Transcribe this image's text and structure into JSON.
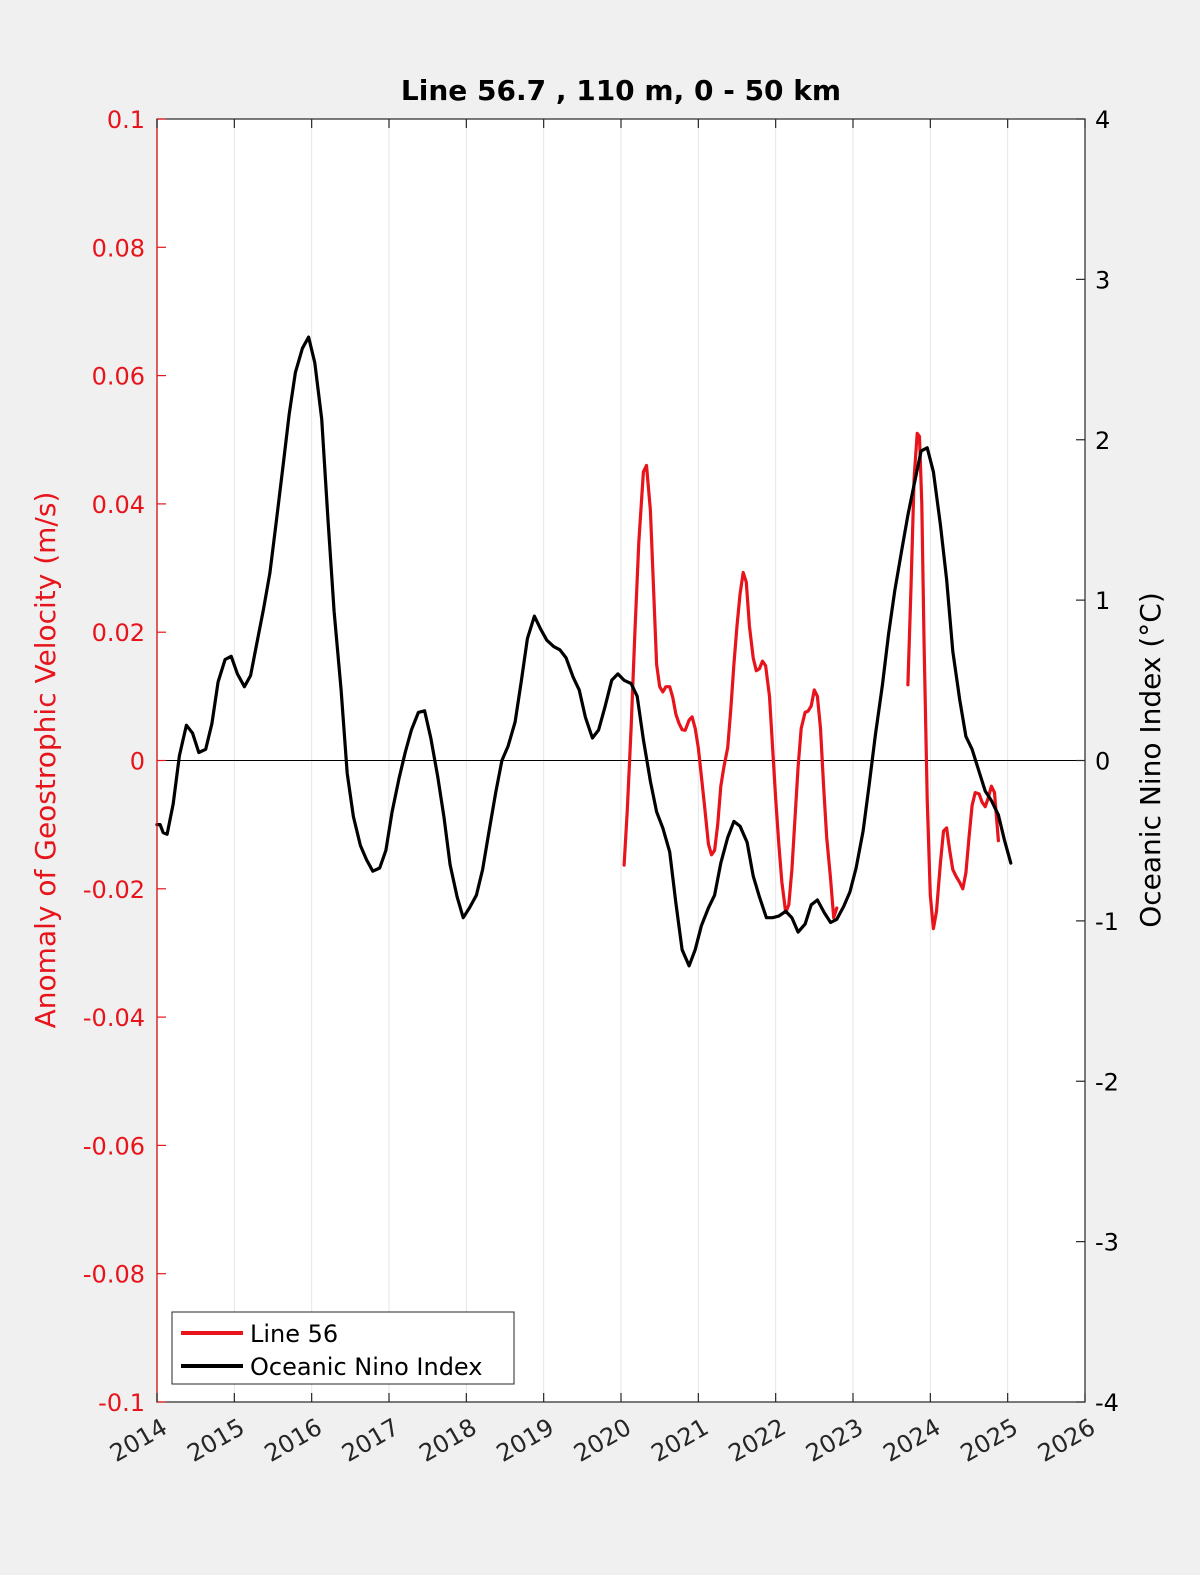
{
  "chart_data": {
    "type": "line",
    "title": "Line 56.7 , 110 m, 0 - 50 km",
    "xlim": [
      2014,
      2026
    ],
    "x_ticks": [
      "2014",
      "2015",
      "2016",
      "2017",
      "2018",
      "2019",
      "2020",
      "2021",
      "2022",
      "2023",
      "2024",
      "2025",
      "2026"
    ],
    "grid": "vertical",
    "legend_position": "bottom-left",
    "left_axis": {
      "label": "Anomaly of Geostrophic Velocity (m/s)",
      "ylim": [
        -0.1,
        0.1
      ],
      "ticks": [
        "-0.1",
        "-0.08",
        "-0.06",
        "-0.04",
        "-0.02",
        "0",
        "0.02",
        "0.04",
        "0.06",
        "0.08",
        "0.1"
      ],
      "color": "#e8141b"
    },
    "right_axis": {
      "label": "Oceanic Nino Index (°C)",
      "ylim": [
        -4,
        4
      ],
      "ticks": [
        "-4",
        "-3",
        "-2",
        "-1",
        "0",
        "1",
        "2",
        "3",
        "4"
      ],
      "color": "#000000"
    },
    "series": [
      {
        "name": "Line 56",
        "axis": "left",
        "color": "#e8141b",
        "segments": [
          [
            [
              2020.04,
              -0.0163
            ],
            [
              2020.08,
              -0.008
            ],
            [
              2020.13,
              0.005
            ],
            [
              2020.18,
              0.02
            ],
            [
              2020.23,
              0.034
            ],
            [
              2020.29,
              0.045
            ],
            [
              2020.33,
              0.046
            ],
            [
              2020.38,
              0.039
            ],
            [
              2020.42,
              0.027
            ],
            [
              2020.46,
              0.015
            ],
            [
              2020.5,
              0.0115
            ],
            [
              2020.54,
              0.0107
            ],
            [
              2020.58,
              0.0115
            ],
            [
              2020.63,
              0.0115
            ],
            [
              2020.67,
              0.0098
            ],
            [
              2020.71,
              0.0072
            ],
            [
              2020.75,
              0.0058
            ],
            [
              2020.79,
              0.0048
            ],
            [
              2020.83,
              0.0047
            ],
            [
              2020.88,
              0.0063
            ],
            [
              2020.92,
              0.0068
            ],
            [
              2020.96,
              0.005
            ],
            [
              2021.0,
              0.002
            ],
            [
              2021.04,
              -0.0025
            ],
            [
              2021.08,
              -0.007
            ],
            [
              2021.13,
              -0.013
            ],
            [
              2021.17,
              -0.0147
            ],
            [
              2021.21,
              -0.014
            ],
            [
              2021.25,
              -0.01
            ],
            [
              2021.29,
              -0.004
            ],
            [
              2021.33,
              -0.001
            ],
            [
              2021.38,
              0.002
            ],
            [
              2021.42,
              0.008
            ],
            [
              2021.46,
              0.015
            ],
            [
              2021.5,
              0.021
            ],
            [
              2021.54,
              0.026
            ],
            [
              2021.58,
              0.0293
            ],
            [
              2021.62,
              0.0278
            ],
            [
              2021.66,
              0.021
            ],
            [
              2021.71,
              0.016
            ],
            [
              2021.75,
              0.014
            ],
            [
              2021.79,
              0.0143
            ],
            [
              2021.83,
              0.0155
            ],
            [
              2021.87,
              0.0148
            ],
            [
              2021.92,
              0.01
            ],
            [
              2021.96,
              0.002
            ],
            [
              2022.0,
              -0.006
            ],
            [
              2022.04,
              -0.013
            ],
            [
              2022.08,
              -0.019
            ],
            [
              2022.13,
              -0.0237
            ],
            [
              2022.17,
              -0.0225
            ],
            [
              2022.21,
              -0.017
            ],
            [
              2022.25,
              -0.009
            ],
            [
              2022.29,
              -0.001
            ],
            [
              2022.33,
              0.005
            ],
            [
              2022.38,
              0.0075
            ],
            [
              2022.42,
              0.0077
            ],
            [
              2022.46,
              0.0085
            ],
            [
              2022.5,
              0.011
            ],
            [
              2022.54,
              0.01
            ],
            [
              2022.58,
              0.005
            ],
            [
              2022.62,
              -0.004
            ],
            [
              2022.66,
              -0.012
            ],
            [
              2022.71,
              -0.0185
            ],
            [
              2022.75,
              -0.0245
            ],
            [
              2022.79,
              -0.023
            ]
          ],
          [
            [
              2023.71,
              0.0118
            ],
            [
              2023.75,
              0.027
            ],
            [
              2023.79,
              0.044
            ],
            [
              2023.83,
              0.051
            ],
            [
              2023.86,
              0.0505
            ],
            [
              2023.89,
              0.04
            ],
            [
              2023.92,
              0.018
            ],
            [
              2023.96,
              -0.006
            ],
            [
              2024.0,
              -0.021
            ],
            [
              2024.04,
              -0.0262
            ],
            [
              2024.08,
              -0.0235
            ],
            [
              2024.13,
              -0.016
            ],
            [
              2024.17,
              -0.011
            ],
            [
              2024.21,
              -0.0105
            ],
            [
              2024.25,
              -0.014
            ],
            [
              2024.29,
              -0.017
            ],
            [
              2024.33,
              -0.018
            ],
            [
              2024.38,
              -0.019
            ],
            [
              2024.42,
              -0.02
            ],
            [
              2024.46,
              -0.0175
            ],
            [
              2024.5,
              -0.012
            ],
            [
              2024.54,
              -0.007
            ],
            [
              2024.58,
              -0.005
            ],
            [
              2024.63,
              -0.0052
            ],
            [
              2024.67,
              -0.0065
            ],
            [
              2024.71,
              -0.0072
            ],
            [
              2024.75,
              -0.0058
            ],
            [
              2024.79,
              -0.004
            ],
            [
              2024.83,
              -0.005
            ],
            [
              2024.88,
              -0.0125
            ]
          ]
        ]
      },
      {
        "name": "Oceanic Nino Index",
        "axis": "right",
        "color": "#000000",
        "points": [
          [
            2014.0,
            -0.4
          ],
          [
            2014.04,
            -0.4
          ],
          [
            2014.08,
            -0.45
          ],
          [
            2014.13,
            -0.46
          ],
          [
            2014.21,
            -0.27
          ],
          [
            2014.29,
            0.03
          ],
          [
            2014.38,
            0.22
          ],
          [
            2014.46,
            0.17
          ],
          [
            2014.54,
            0.05
          ],
          [
            2014.63,
            0.07
          ],
          [
            2014.71,
            0.23
          ],
          [
            2014.79,
            0.49
          ],
          [
            2014.88,
            0.63
          ],
          [
            2014.96,
            0.65
          ],
          [
            2015.04,
            0.54
          ],
          [
            2015.13,
            0.46
          ],
          [
            2015.21,
            0.53
          ],
          [
            2015.29,
            0.73
          ],
          [
            2015.38,
            0.95
          ],
          [
            2015.46,
            1.17
          ],
          [
            2015.54,
            1.48
          ],
          [
            2015.63,
            1.84
          ],
          [
            2015.71,
            2.16
          ],
          [
            2015.79,
            2.42
          ],
          [
            2015.88,
            2.57
          ],
          [
            2015.96,
            2.64
          ],
          [
            2016.04,
            2.48
          ],
          [
            2016.13,
            2.13
          ],
          [
            2016.21,
            1.51
          ],
          [
            2016.29,
            0.93
          ],
          [
            2016.38,
            0.44
          ],
          [
            2016.46,
            -0.08
          ],
          [
            2016.54,
            -0.35
          ],
          [
            2016.63,
            -0.53
          ],
          [
            2016.71,
            -0.62
          ],
          [
            2016.79,
            -0.69
          ],
          [
            2016.88,
            -0.67
          ],
          [
            2016.96,
            -0.56
          ],
          [
            2017.04,
            -0.32
          ],
          [
            2017.13,
            -0.11
          ],
          [
            2017.21,
            0.05
          ],
          [
            2017.29,
            0.19
          ],
          [
            2017.38,
            0.3
          ],
          [
            2017.46,
            0.31
          ],
          [
            2017.54,
            0.14
          ],
          [
            2017.63,
            -0.1
          ],
          [
            2017.71,
            -0.35
          ],
          [
            2017.79,
            -0.65
          ],
          [
            2017.88,
            -0.85
          ],
          [
            2017.96,
            -0.98
          ],
          [
            2018.04,
            -0.92
          ],
          [
            2018.13,
            -0.84
          ],
          [
            2018.21,
            -0.68
          ],
          [
            2018.29,
            -0.45
          ],
          [
            2018.38,
            -0.2
          ],
          [
            2018.46,
            0.0
          ],
          [
            2018.54,
            0.09
          ],
          [
            2018.63,
            0.24
          ],
          [
            2018.71,
            0.49
          ],
          [
            2018.79,
            0.76
          ],
          [
            2018.88,
            0.9
          ],
          [
            2018.96,
            0.82
          ],
          [
            2019.04,
            0.75
          ],
          [
            2019.13,
            0.71
          ],
          [
            2019.21,
            0.69
          ],
          [
            2019.29,
            0.64
          ],
          [
            2019.38,
            0.52
          ],
          [
            2019.46,
            0.44
          ],
          [
            2019.54,
            0.27
          ],
          [
            2019.63,
            0.14
          ],
          [
            2019.71,
            0.19
          ],
          [
            2019.79,
            0.33
          ],
          [
            2019.88,
            0.5
          ],
          [
            2019.96,
            0.54
          ],
          [
            2020.04,
            0.5
          ],
          [
            2020.13,
            0.48
          ],
          [
            2020.21,
            0.4
          ],
          [
            2020.29,
            0.13
          ],
          [
            2020.38,
            -0.13
          ],
          [
            2020.46,
            -0.32
          ],
          [
            2020.54,
            -0.42
          ],
          [
            2020.63,
            -0.57
          ],
          [
            2020.71,
            -0.89
          ],
          [
            2020.79,
            -1.18
          ],
          [
            2020.88,
            -1.28
          ],
          [
            2020.96,
            -1.18
          ],
          [
            2021.04,
            -1.03
          ],
          [
            2021.13,
            -0.92
          ],
          [
            2021.21,
            -0.84
          ],
          [
            2021.29,
            -0.64
          ],
          [
            2021.38,
            -0.48
          ],
          [
            2021.46,
            -0.38
          ],
          [
            2021.54,
            -0.41
          ],
          [
            2021.63,
            -0.51
          ],
          [
            2021.71,
            -0.72
          ],
          [
            2021.79,
            -0.85
          ],
          [
            2021.88,
            -0.98
          ],
          [
            2021.96,
            -0.98
          ],
          [
            2022.04,
            -0.97
          ],
          [
            2022.13,
            -0.94
          ],
          [
            2022.21,
            -0.98
          ],
          [
            2022.29,
            -1.07
          ],
          [
            2022.38,
            -1.02
          ],
          [
            2022.46,
            -0.9
          ],
          [
            2022.54,
            -0.87
          ],
          [
            2022.63,
            -0.95
          ],
          [
            2022.71,
            -1.01
          ],
          [
            2022.79,
            -0.99
          ],
          [
            2022.88,
            -0.91
          ],
          [
            2022.96,
            -0.82
          ],
          [
            2023.04,
            -0.67
          ],
          [
            2023.13,
            -0.44
          ],
          [
            2023.21,
            -0.15
          ],
          [
            2023.29,
            0.16
          ],
          [
            2023.38,
            0.47
          ],
          [
            2023.46,
            0.79
          ],
          [
            2023.54,
            1.06
          ],
          [
            2023.63,
            1.31
          ],
          [
            2023.71,
            1.53
          ],
          [
            2023.79,
            1.72
          ],
          [
            2023.88,
            1.93
          ],
          [
            2023.96,
            1.95
          ],
          [
            2024.04,
            1.8
          ],
          [
            2024.13,
            1.47
          ],
          [
            2024.21,
            1.13
          ],
          [
            2024.29,
            0.68
          ],
          [
            2024.38,
            0.38
          ],
          [
            2024.46,
            0.15
          ],
          [
            2024.54,
            0.07
          ],
          [
            2024.63,
            -0.07
          ],
          [
            2024.71,
            -0.19
          ],
          [
            2024.79,
            -0.25
          ],
          [
            2024.88,
            -0.34
          ],
          [
            2024.96,
            -0.5
          ],
          [
            2025.04,
            -0.64
          ]
        ]
      }
    ]
  },
  "legend": {
    "items": [
      {
        "label": "Line 56",
        "color": "#e8141b"
      },
      {
        "label": "Oceanic Nino Index",
        "color": "#000000"
      }
    ]
  }
}
